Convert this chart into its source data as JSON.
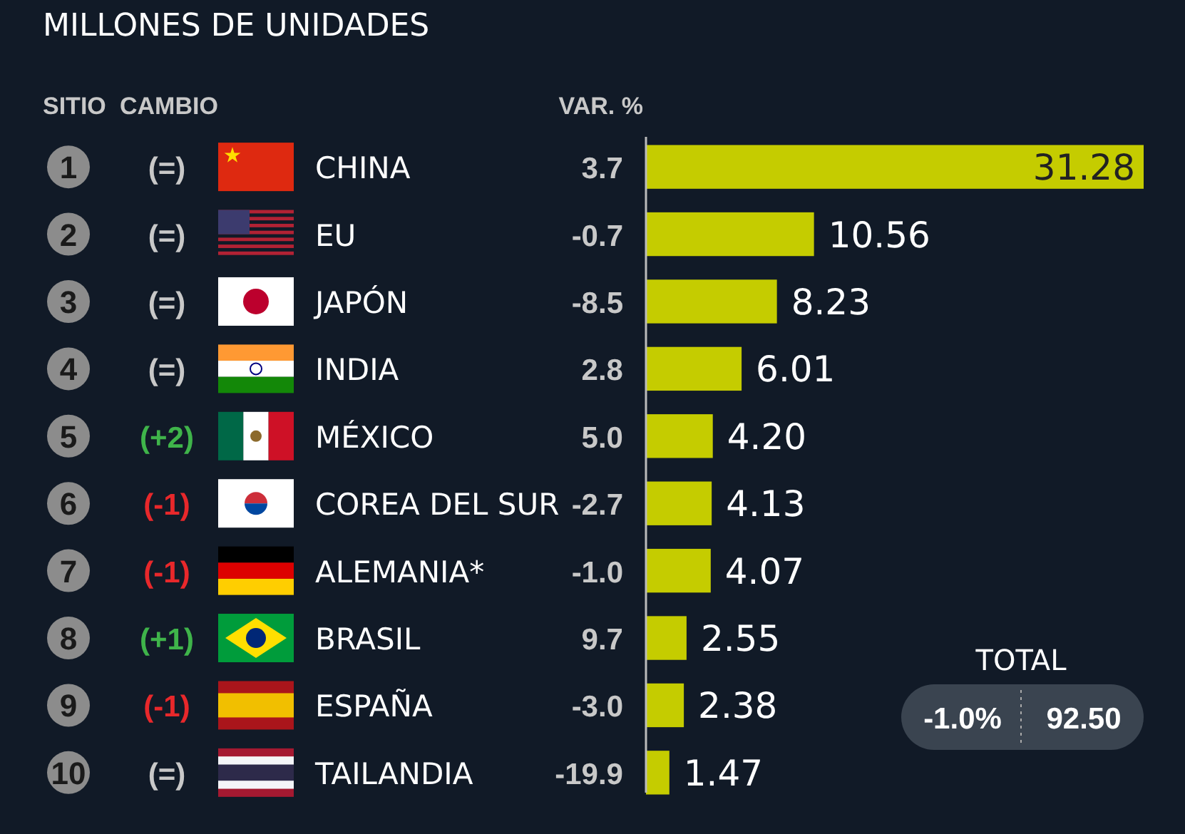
{
  "chart_data": {
    "type": "bar",
    "orientation": "horizontal",
    "title": "MILLONES DE UNIDADES",
    "categories": [
      "CHINA",
      "EU",
      "JAPÓN",
      "INDIA",
      "MÉXICO",
      "COREA DEL SUR",
      "ALEMANIA*",
      "BRASIL",
      "ESPAÑA",
      "TAILANDIA"
    ],
    "values": [
      31.28,
      10.56,
      8.23,
      6.01,
      4.2,
      4.13,
      4.07,
      2.55,
      2.38,
      1.47
    ],
    "value_labels": [
      "31.28",
      "10.56",
      "8.23",
      "6.01",
      "4.20",
      "4.13",
      "4.07",
      "2.55",
      "2.38",
      "1.47"
    ],
    "color": "#c5cc00",
    "data_labels": true,
    "annotations": [
      "SITIO",
      "CAMBIO",
      "VAR. %",
      "TOTAL",
      "-1.0%",
      "92.50",
      "1",
      "(=)",
      "3.7",
      "2",
      "(=)",
      "-0.7",
      "3",
      "(=)",
      "-8.5",
      "4",
      "(=)",
      "2.8",
      "5",
      "(+2)",
      "5.0",
      "6",
      "(-1)",
      "-2.7",
      "7",
      "(-1)",
      "-1.0",
      "8",
      "(+1)",
      "9.7",
      "9",
      "(-1)",
      "-3.0",
      "10",
      "(=)",
      "-19.9"
    ]
  }
}
